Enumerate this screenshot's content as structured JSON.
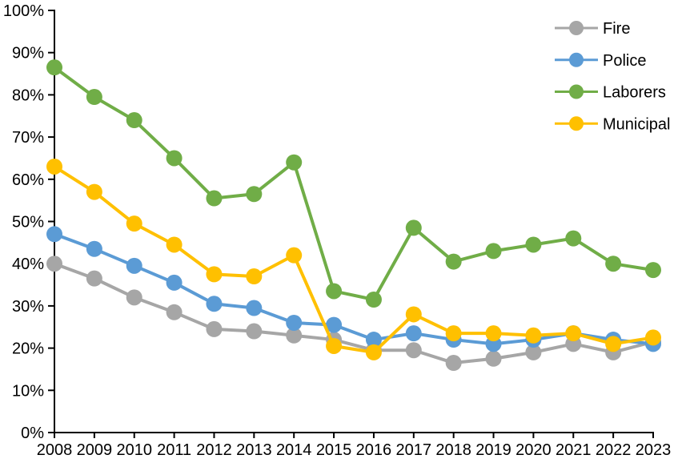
{
  "figure": {
    "background": "#FFFFFF"
  },
  "chart_data": {
    "type": "line",
    "title": "",
    "xlabel": "",
    "ylabel": "",
    "x": [
      2008,
      2009,
      2010,
      2011,
      2012,
      2013,
      2014,
      2015,
      2016,
      2017,
      2018,
      2019,
      2020,
      2021,
      2022,
      2023
    ],
    "ylim": [
      0,
      100
    ],
    "yticks": [
      0,
      10,
      20,
      30,
      40,
      50,
      60,
      70,
      80,
      90,
      100
    ],
    "ytick_labels": [
      "0%",
      "10%",
      "20%",
      "30%",
      "40%",
      "50%",
      "60%",
      "70%",
      "80%",
      "90%",
      "100%"
    ],
    "grid": false,
    "axis_color": "#000000",
    "legend": {
      "position": "top-right-inside",
      "entries": [
        "Fire",
        "Police",
        "Laborers",
        "Municipal"
      ]
    },
    "series": [
      {
        "name": "Fire",
        "color": "#A6A6A6",
        "values": [
          40,
          36.5,
          32,
          28.5,
          24.5,
          24,
          23,
          22,
          19.5,
          19.5,
          16.5,
          17.5,
          19,
          21,
          19,
          21.5
        ]
      },
      {
        "name": "Police",
        "color": "#5B9BD5",
        "values": [
          47,
          43.5,
          39.5,
          35.5,
          30.5,
          29.5,
          26,
          25.5,
          22,
          23.5,
          22,
          21,
          22,
          23.5,
          22,
          21
        ]
      },
      {
        "name": "Laborers",
        "color": "#70AD47",
        "values": [
          86.5,
          79.5,
          74,
          65,
          55.5,
          56.5,
          64,
          33.5,
          31.5,
          48.5,
          40.5,
          43,
          44.5,
          46,
          40,
          38.5
        ]
      },
      {
        "name": "Municipal",
        "color": "#FFC000",
        "values": [
          63,
          57,
          49.5,
          44.5,
          37.5,
          37,
          42,
          20.5,
          19,
          28,
          23.5,
          23.5,
          23,
          23.5,
          21,
          22.5
        ]
      }
    ]
  }
}
